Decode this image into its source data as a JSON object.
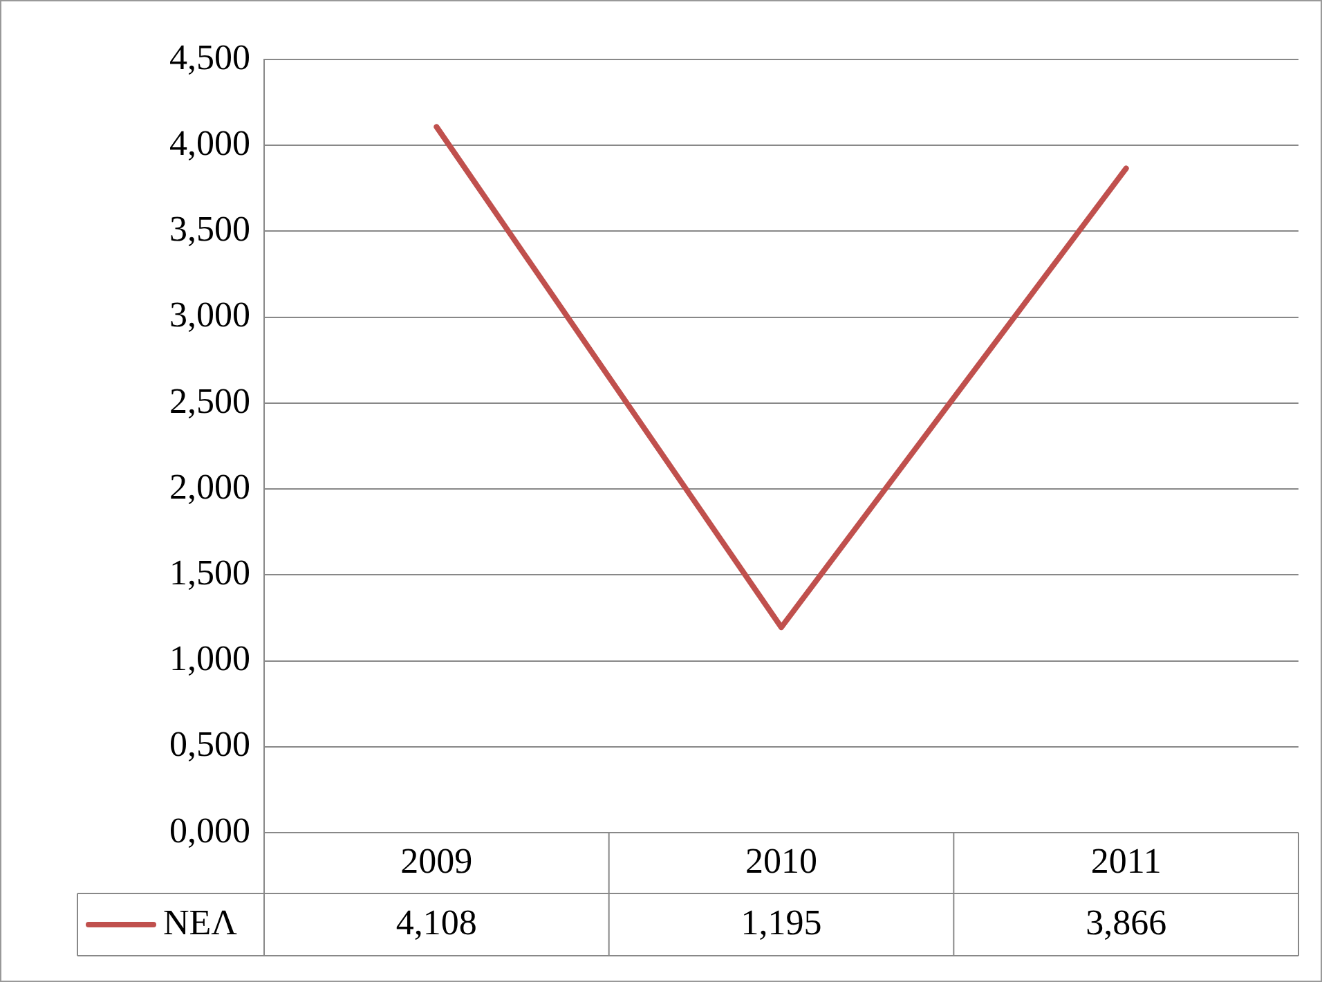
{
  "chart_data": {
    "type": "line",
    "categories": [
      "2009",
      "2010",
      "2011"
    ],
    "series": [
      {
        "name": "ΝΕΛ",
        "color": "#c0504d",
        "values": [
          4.108,
          1.195,
          3.866
        ],
        "value_labels": [
          "4,108",
          "1,195",
          "3,866"
        ]
      }
    ],
    "ylim": [
      0,
      4.5
    ],
    "yticks": [
      {
        "value": 0,
        "label": "0,000"
      },
      {
        "value": 0.5,
        "label": "0,500"
      },
      {
        "value": 1,
        "label": "1,000"
      },
      {
        "value": 1.5,
        "label": "1,500"
      },
      {
        "value": 2,
        "label": "2,000"
      },
      {
        "value": 2.5,
        "label": "2,500"
      },
      {
        "value": 3,
        "label": "3,000"
      },
      {
        "value": 3.5,
        "label": "3,500"
      },
      {
        "value": 4,
        "label": "4,000"
      },
      {
        "value": 4.5,
        "label": "4,500"
      }
    ],
    "grid": "y",
    "legend": "bottom left",
    "marker": "none",
    "line_style": "solid"
  }
}
